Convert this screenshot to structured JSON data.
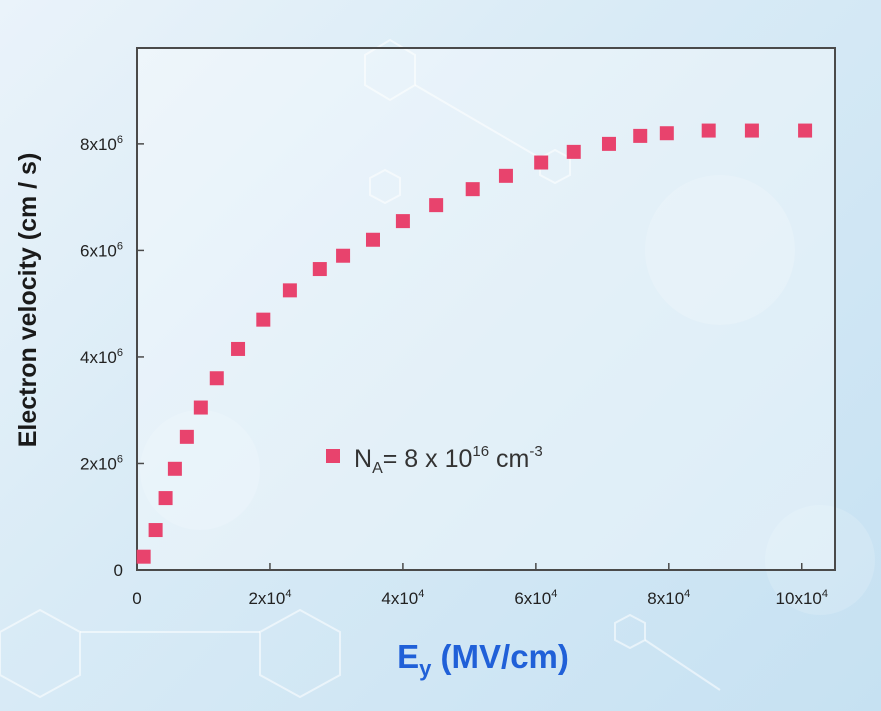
{
  "chart_data": {
    "type": "scatter",
    "ylabel": "Electron velocity (cm / s)",
    "xlabel": {
      "main": "E",
      "sub": "y",
      "rest": " (MV/cm)"
    },
    "legend": {
      "text": "N",
      "sub": "A",
      "mid": "= 8 x 10",
      "sup": "16",
      "unit": " cm",
      "unit_sup": "-3",
      "placement": "center"
    },
    "xlim": [
      0,
      105000
    ],
    "ylim": [
      0,
      9800000
    ],
    "x_ticks": [
      {
        "value": 0,
        "label": "0"
      },
      {
        "value": 20000,
        "label": "2x10",
        "sup": "4"
      },
      {
        "value": 40000,
        "label": "4x10",
        "sup": "4"
      },
      {
        "value": 60000,
        "label": "6x10",
        "sup": "4"
      },
      {
        "value": 80000,
        "label": "8x10",
        "sup": "4"
      },
      {
        "value": 100000,
        "label": "10x10",
        "sup": "4"
      }
    ],
    "y_ticks": [
      {
        "value": 0,
        "label": "0"
      },
      {
        "value": 2000000,
        "label": "2x10",
        "sup": "6"
      },
      {
        "value": 4000000,
        "label": "4x10",
        "sup": "6"
      },
      {
        "value": 6000000,
        "label": "6x10",
        "sup": "6"
      },
      {
        "value": 8000000,
        "label": "8x10",
        "sup": "6"
      }
    ],
    "series": [
      {
        "marker_color": "#e8436d",
        "x": [
          1000,
          2800,
          4300,
          5700,
          7500,
          9600,
          12000,
          15200,
          19000,
          23000,
          27500,
          31000,
          35500,
          40000,
          45000,
          50500,
          55500,
          60800,
          65700,
          71000,
          75700,
          79700,
          86000,
          92500,
          100500
        ],
        "y": [
          250000,
          750000,
          1350000,
          1900000,
          2500000,
          3050000,
          3600000,
          4150000,
          4700000,
          5250000,
          5650000,
          5900000,
          6200000,
          6550000,
          6850000,
          7150000,
          7400000,
          7650000,
          7850000,
          8000000,
          8150000,
          8200000,
          8250000,
          8250000,
          8250000
        ]
      }
    ]
  }
}
